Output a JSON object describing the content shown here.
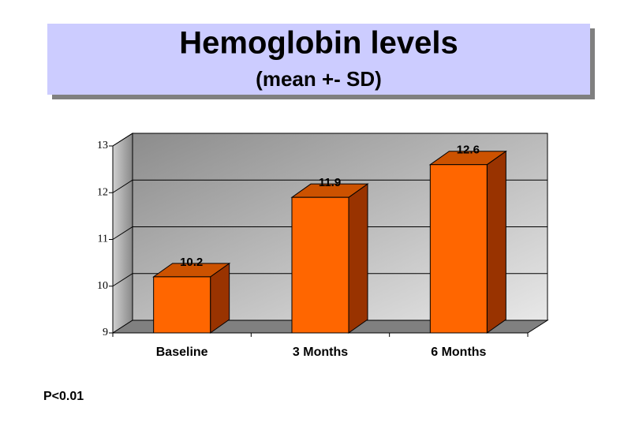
{
  "chart_data": {
    "type": "bar3d",
    "title": "Hemoglobin levels",
    "subtitle": "(mean +- SD)",
    "categories": [
      "Baseline",
      "3 Months",
      "6 Months"
    ],
    "values": [
      10.2,
      11.9,
      12.6
    ],
    "color": "#ff6600",
    "ylim": [
      9,
      13
    ],
    "yticks": [
      9,
      10,
      11,
      12,
      13
    ],
    "grid": true,
    "annotation": "P<0.01"
  }
}
